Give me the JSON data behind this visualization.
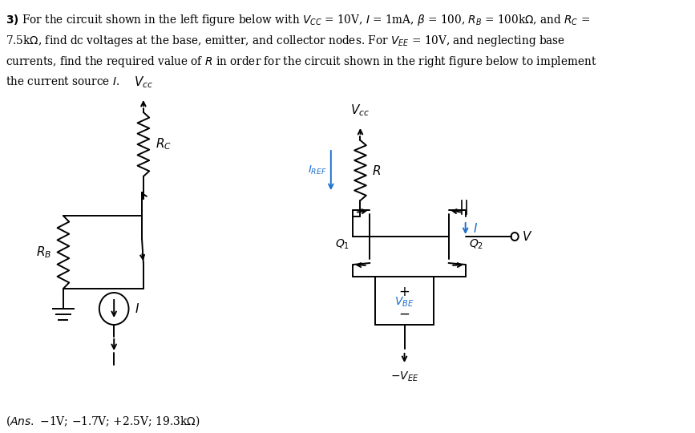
{
  "bg_color": "#ffffff",
  "text_color": "#000000",
  "blue_color": "#1e6fcc",
  "title_lines": [
    "\\textbf{3)} For the circuit shown in the left figure below with $V_{CC}$ = 10V, $I$ = 1mA, $\\beta$ = 100, $R_B$ = 100k$\\Omega$, and $R_C$ =",
    "7.5k$\\Omega$, find dc voltages at the base, emitter, and collector nodes. For $V_{EE}$ = 10V, and neglecting base",
    "currents, find the required value of $R$ in order for the circuit shown in the right figure below to implement",
    "the current source $I$."
  ],
  "ans_line": "($\\mathit{Ans.}$ $-$1V; $-$1.7V; +2.5V; 19.3k$\\Omega$)"
}
